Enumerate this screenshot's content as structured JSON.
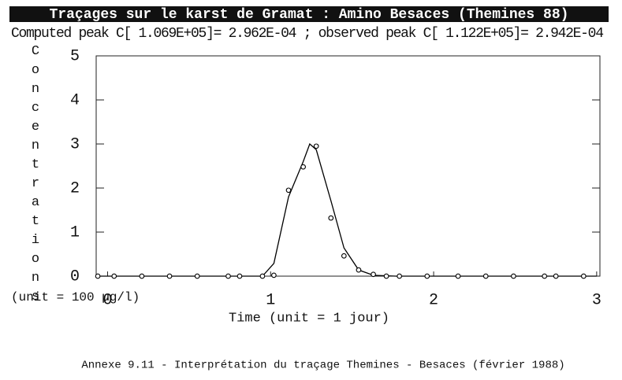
{
  "chart_data": {
    "type": "line",
    "title": "Traçages sur le karst de Gramat : Amino Besaces (Themines 88)",
    "subtitle": "Computed peak C[ 1.069E+05]= 2.962E-04 ; observed peak C[ 1.122E+05]= 2.942E-04",
    "y_label": "Concentrations",
    "y_unit": "(unit = 100 µg/l)",
    "x_label": "Time (unit = 1 jour)",
    "caption": "Annexe 9.11 - Interprétation du traçage Themines - Besaces (février 1988)",
    "xlim": [
      -0.07,
      3.02
    ],
    "ylim": [
      0,
      5
    ],
    "xticks": [
      0,
      1,
      2,
      3
    ],
    "yticks": [
      0,
      1,
      2,
      3,
      4,
      5
    ],
    "series": [
      {
        "style": "line",
        "color": "#000000",
        "x": [
          -0.07,
          0.95,
          1.02,
          1.11,
          1.2,
          1.24,
          1.28,
          1.37,
          1.45,
          1.54,
          1.63,
          1.77,
          3.0
        ],
        "values": [
          0,
          0,
          0.29,
          1.8,
          2.6,
          3.0,
          2.87,
          1.71,
          0.64,
          0.14,
          0.02,
          0,
          0
        ]
      },
      {
        "style": "markers",
        "color": "#000000",
        "x": [
          -0.06,
          0.04,
          0.21,
          0.38,
          0.55,
          0.74,
          0.81,
          0.95,
          1.02,
          1.11,
          1.2,
          1.28,
          1.37,
          1.45,
          1.54,
          1.63,
          1.71,
          1.79,
          1.96,
          2.15,
          2.32,
          2.49,
          2.68,
          2.75,
          2.92
        ],
        "values": [
          0,
          0,
          0,
          0,
          0,
          0,
          0,
          0,
          0.02,
          1.95,
          2.48,
          2.95,
          1.32,
          0.46,
          0.14,
          0.04,
          0,
          0,
          0,
          0,
          0,
          0,
          0,
          0,
          0
        ]
      }
    ]
  }
}
